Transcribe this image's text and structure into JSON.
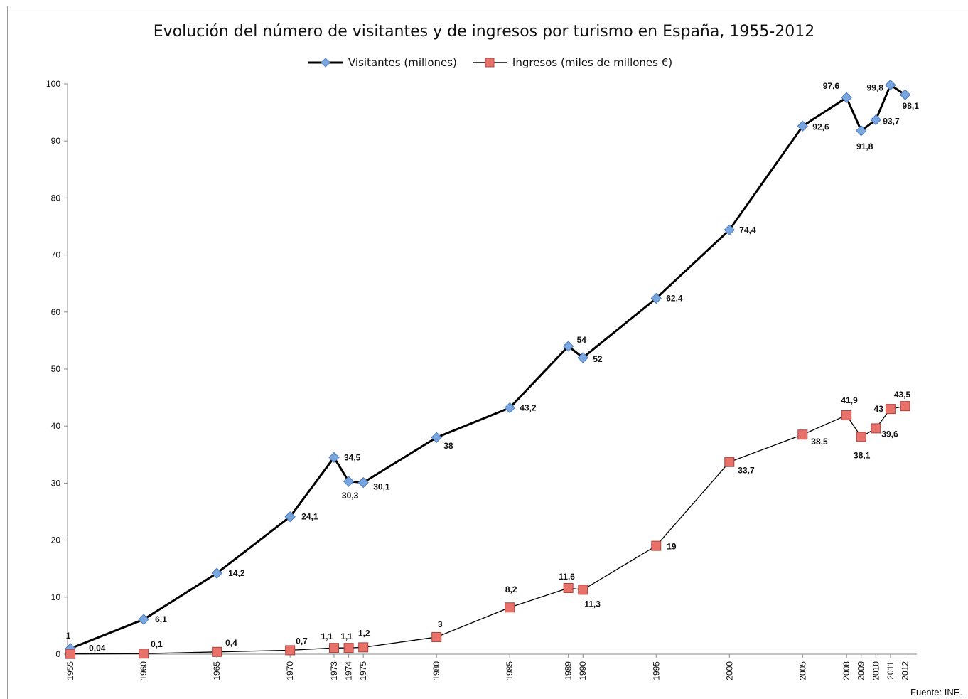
{
  "chart_data": {
    "type": "line",
    "title": "Evolución del número de visitantes y de ingresos por turismo en España, 1955-2012",
    "x": [
      1955,
      1960,
      1965,
      1970,
      1973,
      1974,
      1975,
      1980,
      1985,
      1989,
      1990,
      1995,
      2000,
      2005,
      2008,
      2009,
      2010,
      2011,
      2012
    ],
    "x_labels": [
      "1955",
      "1960",
      "1965",
      "1970",
      "1973",
      "1974",
      "1975",
      "1980",
      "1985",
      "1989",
      "1990",
      "1995",
      "2000",
      "2005",
      "2008",
      "2009",
      "2010",
      "2011",
      "2012"
    ],
    "ylim": [
      0,
      100
    ],
    "y_ticks": [
      0,
      10,
      20,
      30,
      40,
      50,
      60,
      70,
      80,
      90,
      100
    ],
    "legend_position": "top-center",
    "grid": false,
    "series": [
      {
        "name": "Visitantes (millones)",
        "color": "#000000",
        "marker": "diamond",
        "marker_color": "#7aa6e0",
        "values": [
          1,
          6.1,
          14.2,
          24.1,
          34.5,
          30.3,
          30.1,
          38,
          43.2,
          54,
          52,
          62.4,
          74.4,
          92.6,
          97.6,
          91.8,
          93.7,
          99.8,
          98.1
        ],
        "labels": [
          "1",
          "6,1",
          "14,2",
          "24,1",
          "34,5",
          "30,3",
          "30,1",
          "38",
          "43,2",
          "54",
          "52",
          "62,4",
          "74,4",
          "92,6",
          "97,6",
          "91,8",
          "93,7",
          "99,8",
          "98,1"
        ]
      },
      {
        "name": "Ingresos (miles de millones €)",
        "color": "#000000",
        "marker": "square",
        "marker_color": "#e8716a",
        "values": [
          0.04,
          0.1,
          0.4,
          0.7,
          1.1,
          1.1,
          1.2,
          3,
          8.2,
          11.6,
          11.3,
          19,
          33.7,
          38.5,
          41.9,
          38.1,
          39.6,
          43,
          43.5
        ],
        "labels": [
          "0,04",
          "0,1",
          "0,4",
          "0,7",
          "1,1",
          "1,1",
          "1,2",
          "3",
          "8,2",
          "11,6",
          "11,3",
          "19",
          "33,7",
          "38,5",
          "41,9",
          "38,1",
          "39,6",
          "43",
          "43,5"
        ]
      }
    ],
    "source": "Fuente: INE."
  }
}
